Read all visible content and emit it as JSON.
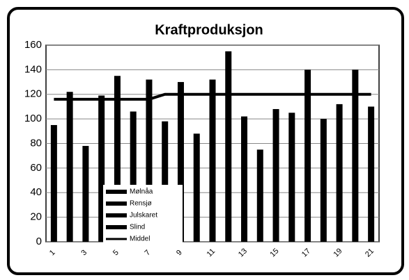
{
  "chart_data": {
    "type": "bar",
    "title": "Kraftproduksjon",
    "categories": [
      1,
      null,
      3,
      null,
      5,
      null,
      7,
      null,
      9,
      null,
      11,
      null,
      13,
      null,
      15,
      null,
      17,
      null,
      19,
      null,
      21
    ],
    "values": [
      95,
      122,
      78,
      119,
      135,
      106,
      132,
      98,
      130,
      88,
      132,
      155,
      102,
      75,
      108,
      105,
      140,
      100,
      112,
      140,
      110
    ],
    "color": "#000000",
    "line": {
      "name": "Middel",
      "color": "#000000",
      "values": [
        116,
        116,
        116,
        116,
        116,
        116,
        116,
        120,
        120,
        120,
        120,
        120,
        120,
        120,
        120,
        120,
        120,
        120,
        120,
        120,
        120
      ]
    },
    "legend": [
      "Mølnåa",
      "Rensjø",
      "Julskaret",
      "Slind"
    ],
    "ylim": [
      0,
      160
    ],
    "yticks": [
      0,
      20,
      40,
      60,
      80,
      100,
      120,
      140,
      160
    ],
    "grid": true
  }
}
